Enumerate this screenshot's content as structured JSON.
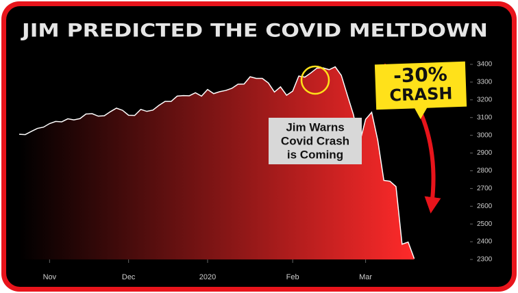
{
  "chart_data": {
    "type": "area",
    "title": "JIM PREDICTED THE COVID MELTDOWN",
    "categories": [
      null,
      null,
      null,
      null,
      null,
      "Nov",
      null,
      null,
      null,
      null,
      null,
      null,
      null,
      null,
      null,
      null,
      null,
      null,
      "Dec",
      null,
      null,
      null,
      null,
      null,
      null,
      null,
      null,
      null,
      null,
      null,
      null,
      "2020",
      null,
      null,
      null,
      null,
      null,
      null,
      null,
      null,
      null,
      null,
      null,
      null,
      null,
      "Feb",
      null,
      null,
      null,
      null,
      null,
      null,
      null,
      null,
      null,
      null,
      null,
      "Mar",
      null,
      null,
      null,
      null,
      null,
      null,
      null,
      null
    ],
    "values": [
      3006,
      3004,
      3022,
      3039,
      3046,
      3066,
      3078,
      3076,
      3093,
      3087,
      3094,
      3120,
      3122,
      3108,
      3110,
      3133,
      3153,
      3141,
      3113,
      3112,
      3146,
      3135,
      3142,
      3169,
      3191,
      3191,
      3221,
      3224,
      3223,
      3240,
      3221,
      3258,
      3235,
      3246,
      3253,
      3265,
      3288,
      3289,
      3330,
      3321,
      3321,
      3295,
      3244,
      3273,
      3226,
      3249,
      3334,
      3328,
      3352,
      3379,
      3380,
      3370,
      3386,
      3338,
      3226,
      3116,
      2954,
      3090,
      3130,
      2972,
      2746,
      2741,
      2711,
      2386,
      2398,
      2305
    ],
    "line_color": "#ffffff",
    "fill_colors": [
      "#000000",
      "#ff2a2a"
    ],
    "ylim": [
      2300,
      3400
    ],
    "yticks": [
      2300,
      2400,
      2500,
      2600,
      2700,
      2800,
      2900,
      3000,
      3100,
      3200,
      3300,
      3400
    ],
    "annotations": [
      {
        "lines": [
          "Jim Warns",
          "Covid Crash",
          "is Coming"
        ]
      },
      {
        "lines": [
          "-30%",
          "CRASH"
        ]
      }
    ]
  }
}
